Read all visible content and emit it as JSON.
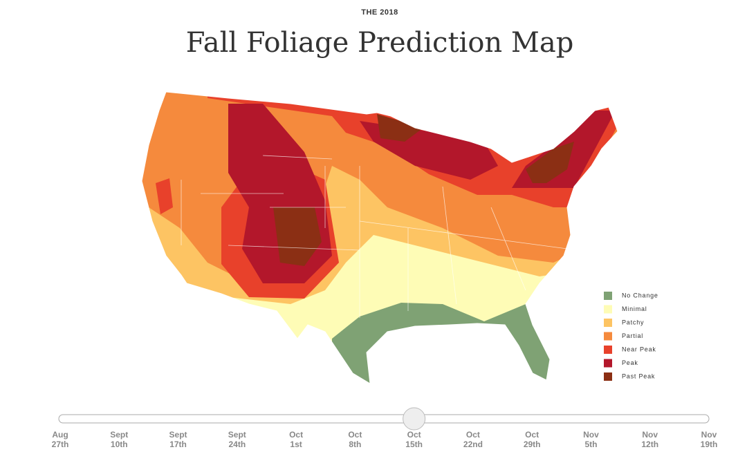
{
  "header": {
    "eyebrow": "THE 2018",
    "title": "Fall Foliage Prediction Map"
  },
  "legend": {
    "items": [
      {
        "label": "No Change",
        "color": "#7fa274"
      },
      {
        "label": "Minimal",
        "color": "#fefcb6"
      },
      {
        "label": "Patchy",
        "color": "#fdc463"
      },
      {
        "label": "Partial",
        "color": "#f58a3d"
      },
      {
        "label": "Near Peak",
        "color": "#e8412b"
      },
      {
        "label": "Peak",
        "color": "#b3172b"
      },
      {
        "label": "Past Peak",
        "color": "#8b2f14"
      }
    ]
  },
  "timeline": {
    "selected_index": 6,
    "stops": [
      {
        "month": "Aug",
        "day": "27th"
      },
      {
        "month": "Sept",
        "day": "10th"
      },
      {
        "month": "Sept",
        "day": "17th"
      },
      {
        "month": "Sept",
        "day": "24th"
      },
      {
        "month": "Oct",
        "day": "1st"
      },
      {
        "month": "Oct",
        "day": "8th"
      },
      {
        "month": "Oct",
        "day": "15th"
      },
      {
        "month": "Oct",
        "day": "22nd"
      },
      {
        "month": "Oct",
        "day": "29th"
      },
      {
        "month": "Nov",
        "day": "5th"
      },
      {
        "month": "Nov",
        "day": "12th"
      },
      {
        "month": "Nov",
        "day": "19th"
      }
    ]
  }
}
